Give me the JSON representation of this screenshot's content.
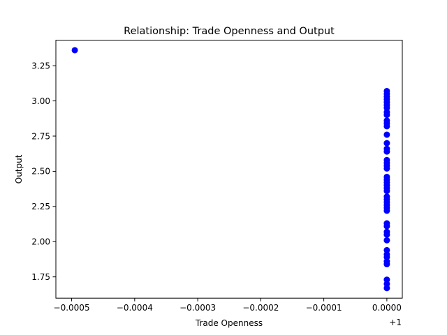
{
  "chart_data": {
    "type": "scatter",
    "title": "Relationship: Trade Openness and Output",
    "xlabel": "Trade Openness",
    "ylabel": "Output",
    "x_offset_label": "+1",
    "xlim": [
      0.999475,
      1.0000245
    ],
    "ylim": [
      1.5988,
      3.4312
    ],
    "x_ticks": [
      -0.0005,
      -0.0004,
      -0.0003,
      -0.0002,
      -0.0001,
      0.0
    ],
    "x_tick_labels": [
      "−0.0005",
      "−0.0004",
      "−0.0003",
      "−0.0002",
      "−0.0001",
      "0.0000"
    ],
    "y_ticks": [
      1.75,
      2.0,
      2.25,
      2.5,
      2.75,
      3.0,
      3.25
    ],
    "y_tick_labels": [
      "1.75",
      "2.00",
      "2.25",
      "2.50",
      "2.75",
      "3.00",
      "3.25"
    ],
    "grid": false,
    "series": [
      {
        "color": "#0000ff",
        "marker": "circle",
        "points": [
          [
            0.999505,
            3.36
          ],
          [
            1.0,
            3.07
          ],
          [
            1.0,
            3.05
          ],
          [
            1.0,
            3.03
          ],
          [
            1.0,
            3.01
          ],
          [
            1.0,
            2.99
          ],
          [
            1.0,
            2.97
          ],
          [
            1.0,
            2.95
          ],
          [
            1.0,
            2.92
          ],
          [
            1.0,
            2.9
          ],
          [
            1.0,
            2.86
          ],
          [
            1.0,
            2.84
          ],
          [
            1.0,
            2.82
          ],
          [
            1.0,
            2.76
          ],
          [
            1.0,
            2.7
          ],
          [
            1.0,
            2.66
          ],
          [
            1.0,
            2.64
          ],
          [
            1.0,
            2.58
          ],
          [
            1.0,
            2.56
          ],
          [
            1.0,
            2.54
          ],
          [
            1.0,
            2.52
          ],
          [
            1.0,
            2.46
          ],
          [
            1.0,
            2.44
          ],
          [
            1.0,
            2.42
          ],
          [
            1.0,
            2.4
          ],
          [
            1.0,
            2.38
          ],
          [
            1.0,
            2.36
          ],
          [
            1.0,
            2.32
          ],
          [
            1.0,
            2.3
          ],
          [
            1.0,
            2.28
          ],
          [
            1.0,
            2.26
          ],
          [
            1.0,
            2.24
          ],
          [
            1.0,
            2.22
          ],
          [
            1.0,
            2.13
          ],
          [
            1.0,
            2.11
          ],
          [
            1.0,
            2.07
          ],
          [
            1.0,
            2.05
          ],
          [
            1.0,
            2.01
          ],
          [
            1.0,
            1.94
          ],
          [
            1.0,
            1.91
          ],
          [
            1.0,
            1.89
          ],
          [
            1.0,
            1.86
          ],
          [
            1.0,
            1.84
          ],
          [
            1.0,
            1.73
          ],
          [
            1.0,
            1.7
          ],
          [
            1.0,
            1.67
          ]
        ]
      }
    ]
  }
}
